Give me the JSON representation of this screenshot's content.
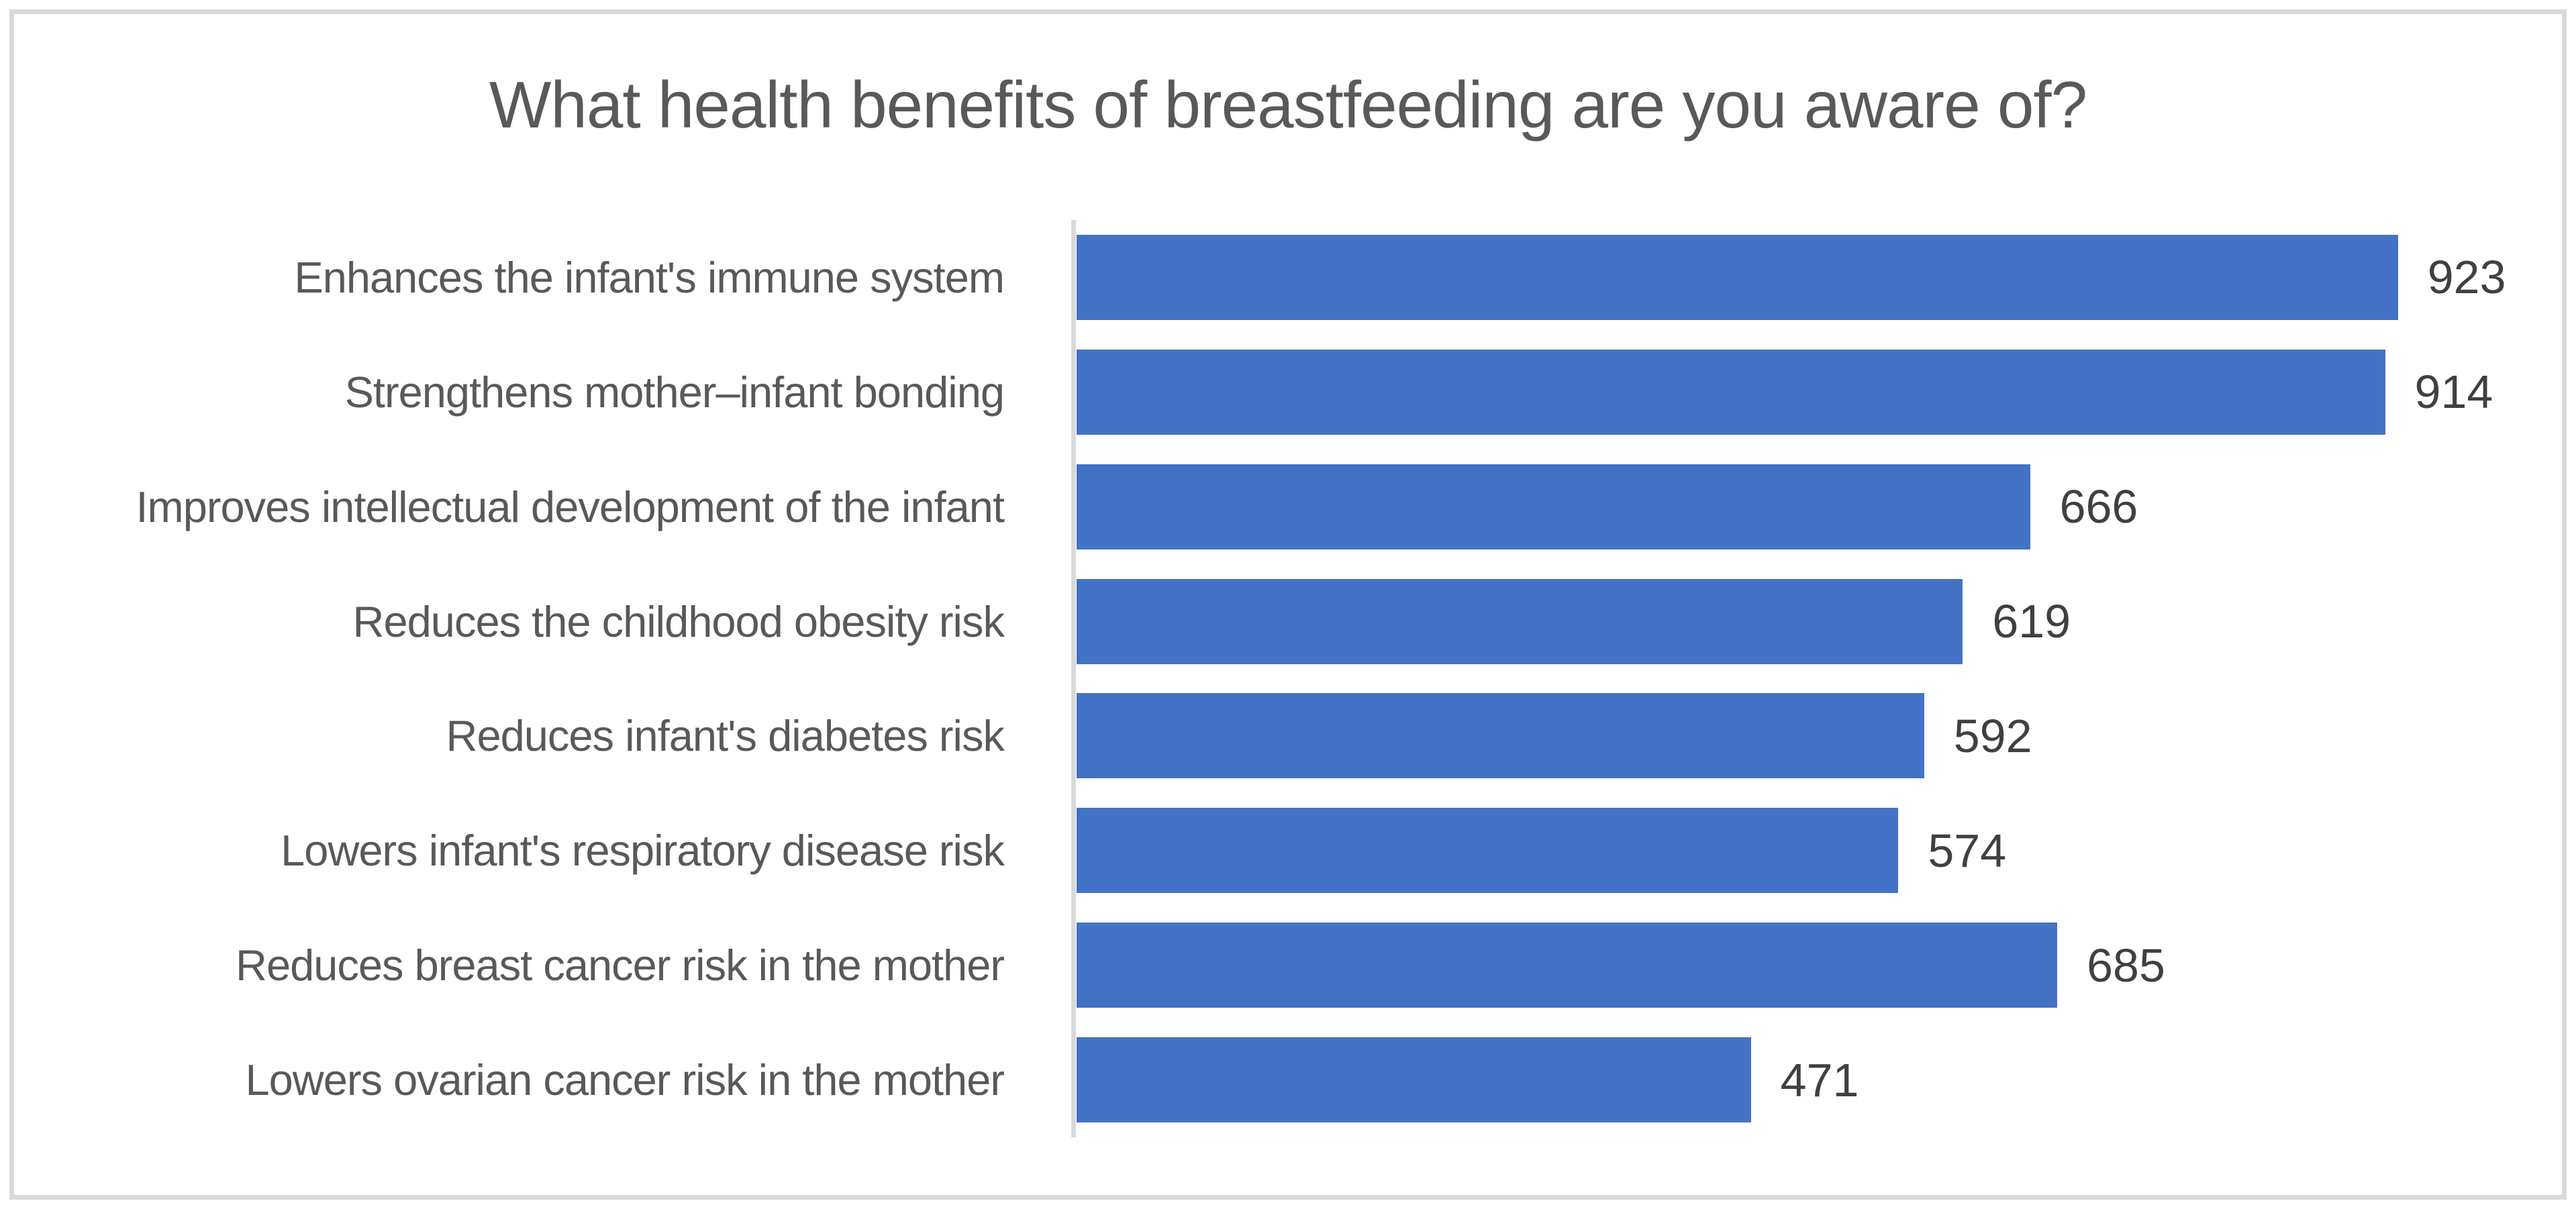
{
  "chart_data": {
    "type": "bar",
    "orientation": "horizontal",
    "title": "What health benefits of breastfeeding are you aware of?",
    "categories": [
      "Enhances the infant's immune system",
      "Strengthens mother–infant bonding",
      "Improves intellectual development of the infant",
      "Reduces the childhood obesity risk",
      "Reduces infant's diabetes risk",
      "Lowers infant's respiratory disease risk",
      "Reduces breast cancer risk in the mother",
      "Lowers ovarian cancer risk in the mother"
    ],
    "values": [
      923,
      914,
      666,
      619,
      592,
      574,
      685,
      471
    ],
    "xlabel": "",
    "ylabel": "",
    "xlim": [
      0,
      1000
    ],
    "gridlines": "none",
    "legend": "none",
    "data_labels_position": "outside-end",
    "colors": {
      "bar": "#4472C4",
      "axis_line": "#D9D9D9",
      "frame_border": "#D9D9D9",
      "title_text": "#595959",
      "category_text": "#595959",
      "value_text": "#404040",
      "background": "#FFFFFF"
    }
  }
}
